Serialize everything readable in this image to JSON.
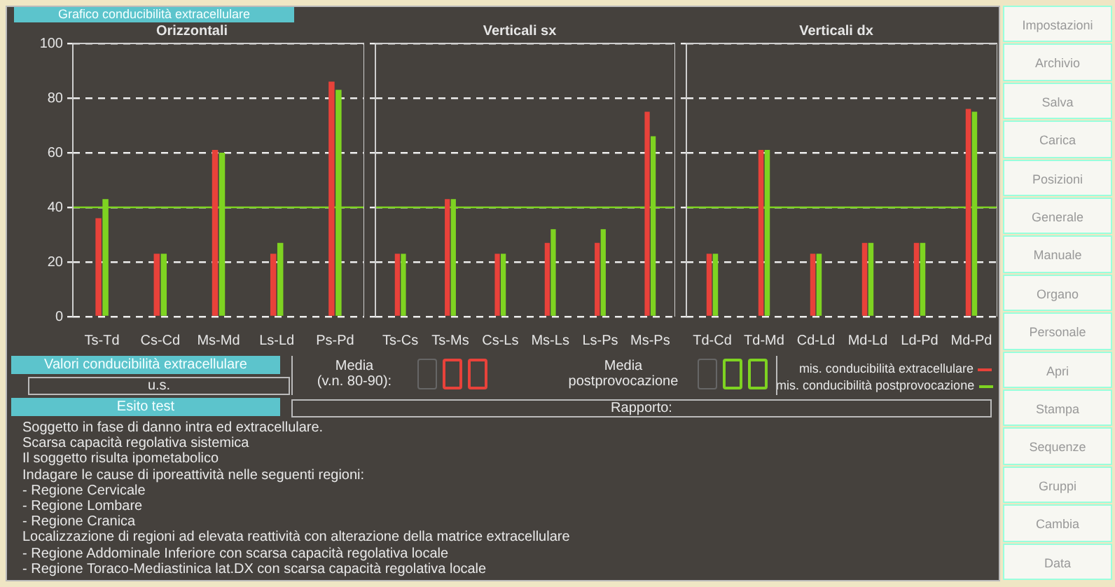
{
  "chart_data": [
    {
      "type": "bar",
      "title": "Orizzontali",
      "annotations": [
        "Grafico conducibilità extracellulare"
      ],
      "categories": [
        "Ts-Td",
        "Cs-Cd",
        "Ms-Md",
        "Ls-Ld",
        "Ps-Pd"
      ],
      "series": [
        {
          "name": "mis. conducibilità extracellulare",
          "color": "#e8423a",
          "values": [
            36,
            23,
            61,
            23,
            86
          ]
        },
        {
          "name": "mis. conducibilità postprovocazione",
          "color": "#7ed321",
          "values": [
            43,
            23,
            60,
            27,
            83
          ]
        }
      ],
      "ylim": [
        0,
        100
      ],
      "yticks": [
        0,
        20,
        40,
        60,
        80,
        100
      ],
      "grid": "y",
      "legend": "bottom right",
      "ref_lines": [
        {
          "axis": "y",
          "value": 40,
          "color": "#7ed321"
        }
      ]
    },
    {
      "type": "bar",
      "title": "Verticali sx",
      "categories": [
        "Ts-Cs",
        "Ts-Ms",
        "Cs-Ls",
        "Ms-Ls",
        "Ls-Ps",
        "Ms-Ps"
      ],
      "series": [
        {
          "color": "#e8423a",
          "values": [
            23,
            43,
            23,
            27,
            27,
            75
          ]
        },
        {
          "color": "#7ed321",
          "values": [
            23,
            43,
            23,
            32,
            32,
            66
          ]
        }
      ],
      "ylim": [
        0,
        100
      ],
      "yticks": [
        0,
        20,
        40,
        60,
        80,
        100
      ],
      "grid": "y",
      "tick_labels": "x",
      "ref_lines": [
        {
          "axis": "y",
          "value": 40,
          "color": "#7ed321"
        }
      ]
    },
    {
      "type": "bar",
      "title": "Verticali dx",
      "categories": [
        "Td-Cd",
        "Td-Md",
        "Cd-Ld",
        "Md-Ld",
        "Ld-Pd",
        "Md-Pd"
      ],
      "series": [
        {
          "color": "#e8423a",
          "values": [
            23,
            61,
            23,
            27,
            27,
            76
          ]
        },
        {
          "color": "#7ed321",
          "values": [
            23,
            61,
            23,
            27,
            27,
            75
          ]
        }
      ],
      "ylim": [
        0,
        100
      ],
      "yticks": [
        0,
        20,
        40,
        60,
        80,
        100
      ],
      "grid": "y",
      "tick_labels": "x",
      "ref_lines": [
        {
          "axis": "y",
          "value": 40,
          "color": "#7ed321"
        }
      ]
    },
    {
      "type": "other",
      "title": "Valori conducibilità extracellulare",
      "annotations": [
        "u.s.",
        "Media\n(v.n. 80-90):",
        "Media\npostprovocazione"
      ]
    },
    {
      "type": "other",
      "title": "Esito test",
      "subtitle": "Rapporto:",
      "annotations": [
        "Soggetto in fase di danno intra ed extracellulare.",
        "Scarsa capacità regolativa sistemica",
        "Il soggetto risulta ipometabolico",
        "Indagare le cause di iporeattività nelle seguenti regioni:",
        "- Regione Cervicale",
        "- Regione Lombare",
        "- Regione Cranica",
        "Localizzazione di regioni ad elevata reattività con alterazione della matrice extracellulare",
        "- Regione Addominale Inferiore con scarsa capacità regolativa locale",
        "- Regione Toraco-Mediastinica lat.DX con scarsa capacità regolativa locale"
      ]
    },
    {
      "type": "other",
      "annotations": [
        "Impostazioni",
        "Archivio",
        "Salva",
        "Carica",
        "Posizioni",
        "Generale",
        "Manuale",
        "Organo",
        "Personale",
        "Apri",
        "Stampa",
        "Sequenze",
        "Gruppi",
        "Cambia",
        "Data"
      ]
    }
  ]
}
